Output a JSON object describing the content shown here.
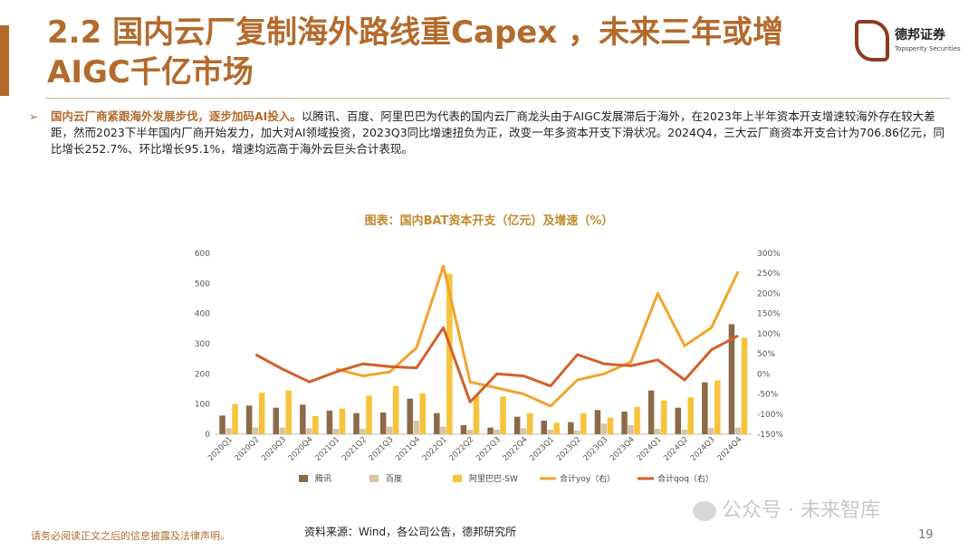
{
  "header": {
    "title": "2.2 国内云厂复制海外路线重Capex ，未来三年或增AIGC千亿市场",
    "brand_name": "德邦证券",
    "brand_en": "Topsperity Securities"
  },
  "bullet": {
    "lead": "国内云厂商紧跟海外发展步伐，逐步加码AI投入。",
    "body": "以腾讯、百度、阿里巴巴为代表的国内云厂商龙头由于AIGC发展滞后于海外，在2023年上半年资本开支增速较海外存在较大差距，然而2023下半年国内厂商开始发力，加大对AI领域投资，2023Q3同比增速扭负为正，改变一年多资本开支下滑状况。2024Q4，三大云厂商资本开支合计为706.86亿元，同比增长252.7%、环比增长95.1%，增速均远高于海外云巨头合计表现。"
  },
  "footer": {
    "source": "资料来源：Wind，各公司公告，德邦研究所",
    "disclaimer": "请务必阅读正文之后的信息披露及法律声明。",
    "watermark": "公众号 · 未来智库",
    "page_number": "19"
  },
  "chart_data": {
    "type": "bar",
    "title": "图表：国内BAT资本开支（亿元）及增速（%）",
    "categories": [
      "2020Q1",
      "2020Q2",
      "2020Q3",
      "2020Q4",
      "2021Q1",
      "2021Q2",
      "2021Q3",
      "2021Q4",
      "2022Q1",
      "2022Q2",
      "2022Q3",
      "2022Q4",
      "2023Q1",
      "2023Q2",
      "2023Q3",
      "2023Q4",
      "2024Q1",
      "2024Q2",
      "2024Q3",
      "2024Q4"
    ],
    "ylim_left": [
      0,
      600
    ],
    "yticks_left": [
      "0",
      "100",
      "200",
      "300",
      "400",
      "500",
      "600"
    ],
    "ylim_right": [
      -150,
      300
    ],
    "yticks_right": [
      "-150%",
      "-100%",
      "-50%",
      "0%",
      "50%",
      "100%",
      "150%",
      "200%",
      "250%",
      "300%"
    ],
    "bar_series": [
      {
        "name": "腾讯",
        "color": "#8c6a48",
        "values": [
          62,
          95,
          88,
          98,
          78,
          70,
          72,
          118,
          70,
          30,
          22,
          58,
          45,
          40,
          80,
          75,
          145,
          88,
          172,
          365
        ]
      },
      {
        "name": "百度",
        "color": "#d9c3a0",
        "values": [
          20,
          22,
          22,
          20,
          18,
          18,
          25,
          45,
          25,
          15,
          15,
          20,
          15,
          12,
          35,
          30,
          18,
          15,
          20,
          22
        ]
      },
      {
        "name": "阿里巴巴-SW",
        "color": "#f7c33a",
        "values": [
          100,
          138,
          145,
          60,
          85,
          128,
          160,
          135,
          532,
          127,
          125,
          70,
          38,
          70,
          55,
          90,
          112,
          122,
          178,
          320
        ]
      }
    ],
    "line_series": [
      {
        "name": "合计yoy（右）",
        "color": "#f0a52c",
        "values": [
          null,
          null,
          null,
          null,
          12,
          -5,
          5,
          65,
          268,
          -20,
          -35,
          -50,
          -80,
          -15,
          0,
          30,
          200,
          70,
          115,
          255
        ]
      },
      {
        "name": "合计qoq（右）",
        "color": "#d2602a",
        "values": [
          null,
          48,
          12,
          -20,
          5,
          25,
          18,
          15,
          115,
          -70,
          0,
          -5,
          -30,
          48,
          25,
          20,
          35,
          -15,
          60,
          95
        ]
      }
    ],
    "grid": false,
    "legend_position": "bottom"
  }
}
